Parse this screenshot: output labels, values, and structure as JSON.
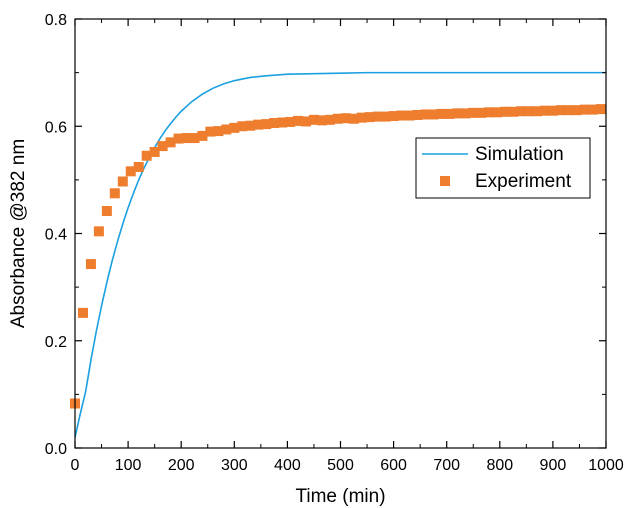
{
  "chart_data": {
    "type": "line",
    "xlabel": "Time (min)",
    "ylabel": "Absorbance @382 nm",
    "xlim": [
      0,
      1000
    ],
    "ylim": [
      0,
      0.8
    ],
    "x_ticks": [
      "0",
      "100",
      "200",
      "300",
      "400",
      "500",
      "600",
      "700",
      "800",
      "900",
      "1000"
    ],
    "y_ticks": [
      "0.0",
      "0.2",
      "0.4",
      "0.6",
      "0.8"
    ],
    "grid": false,
    "legend_position": "right",
    "series": [
      {
        "name": "Simulation",
        "kind": "line",
        "color": "#1a9fe0",
        "x": [
          0,
          10,
          20,
          30,
          40,
          50,
          60,
          70,
          80,
          90,
          100,
          110,
          120,
          130,
          140,
          150,
          160,
          170,
          180,
          190,
          200,
          220,
          240,
          260,
          280,
          300,
          330,
          360,
          400,
          450,
          500,
          550,
          600,
          650,
          700,
          750,
          800,
          850,
          900,
          950,
          1000
        ],
        "y": [
          0.02,
          0.064,
          0.105,
          0.164,
          0.217,
          0.265,
          0.309,
          0.349,
          0.385,
          0.418,
          0.448,
          0.475,
          0.5,
          0.522,
          0.542,
          0.56,
          0.577,
          0.592,
          0.605,
          0.617,
          0.628,
          0.646,
          0.66,
          0.671,
          0.679,
          0.685,
          0.691,
          0.694,
          0.697,
          0.698,
          0.699,
          0.7,
          0.7,
          0.7,
          0.7,
          0.7,
          0.7,
          0.7,
          0.7,
          0.7,
          0.7
        ]
      },
      {
        "name": "Experiment",
        "kind": "scatter",
        "color": "#ee7d2e",
        "x": [
          0,
          15,
          30,
          45,
          60,
          75,
          90,
          105,
          120,
          135,
          150,
          165,
          180,
          195,
          210,
          225,
          240,
          255,
          270,
          285,
          300,
          315,
          330,
          345,
          360,
          375,
          390,
          405,
          420,
          435,
          450,
          465,
          480,
          495,
          510,
          525,
          540,
          555,
          570,
          585,
          600,
          615,
          630,
          645,
          660,
          675,
          690,
          705,
          720,
          735,
          750,
          765,
          780,
          795,
          810,
          825,
          840,
          855,
          870,
          885,
          900,
          915,
          930,
          945,
          960,
          975,
          990
        ],
        "y": [
          0.083,
          0.252,
          0.343,
          0.404,
          0.442,
          0.475,
          0.497,
          0.516,
          0.524,
          0.545,
          0.552,
          0.563,
          0.57,
          0.577,
          0.578,
          0.578,
          0.582,
          0.59,
          0.591,
          0.594,
          0.597,
          0.6,
          0.601,
          0.603,
          0.604,
          0.606,
          0.607,
          0.608,
          0.61,
          0.609,
          0.612,
          0.611,
          0.612,
          0.614,
          0.615,
          0.614,
          0.616,
          0.617,
          0.618,
          0.618,
          0.619,
          0.62,
          0.62,
          0.621,
          0.622,
          0.622,
          0.623,
          0.623,
          0.624,
          0.624,
          0.625,
          0.625,
          0.626,
          0.626,
          0.627,
          0.627,
          0.628,
          0.628,
          0.628,
          0.629,
          0.629,
          0.63,
          0.63,
          0.63,
          0.631,
          0.631,
          0.632
        ]
      }
    ]
  }
}
